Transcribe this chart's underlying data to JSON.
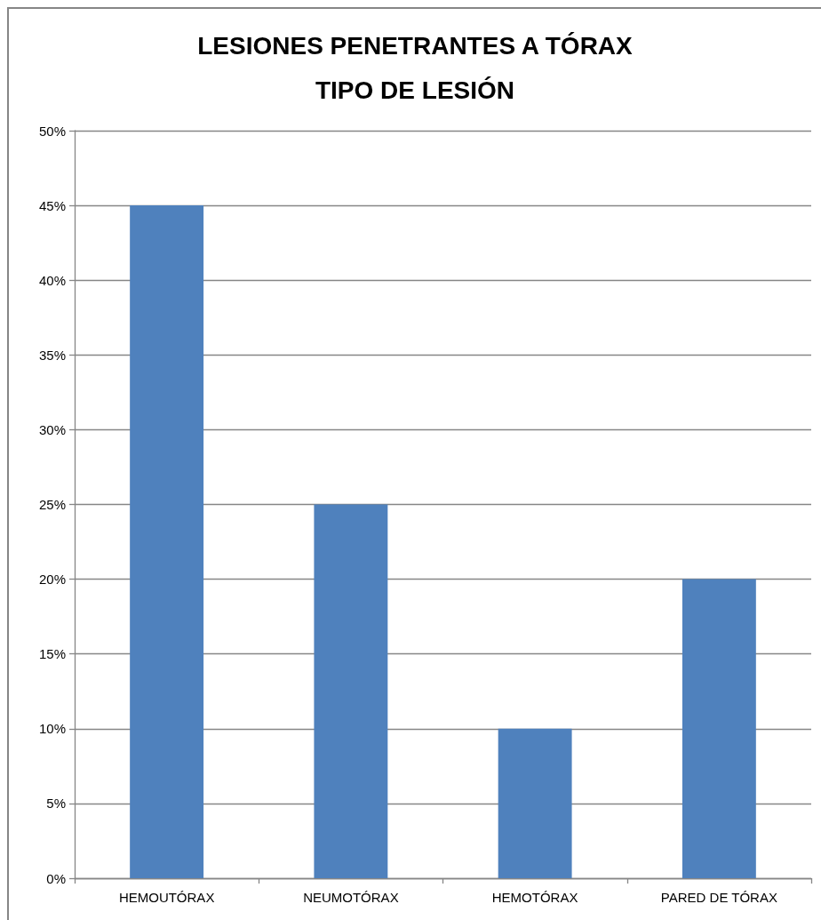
{
  "chart_data": {
    "type": "bar",
    "title": "LESIONES PENETRANTES A TÓRAX",
    "subtitle": "TIPO DE LESIÓN",
    "categories": [
      "HEMOUTÓRAX",
      "NEUMOTÓRAX",
      "HEMOTÓRAX",
      "PARED DE TÓRAX"
    ],
    "values": [
      45,
      25,
      10,
      20
    ],
    "color": "#4f81bd",
    "ylim": [
      0,
      50
    ],
    "yticks": [
      {
        "value": 0,
        "label": "0%"
      },
      {
        "value": 5,
        "label": "5%"
      },
      {
        "value": 10,
        "label": "10%"
      },
      {
        "value": 15,
        "label": "15%"
      },
      {
        "value": 20,
        "label": "20%"
      },
      {
        "value": 25,
        "label": "25%"
      },
      {
        "value": 30,
        "label": "30%"
      },
      {
        "value": 35,
        "label": "35%"
      },
      {
        "value": 40,
        "label": "40%"
      },
      {
        "value": 45,
        "label": "45%"
      },
      {
        "value": 50,
        "label": "50%"
      }
    ],
    "grid": "y"
  }
}
